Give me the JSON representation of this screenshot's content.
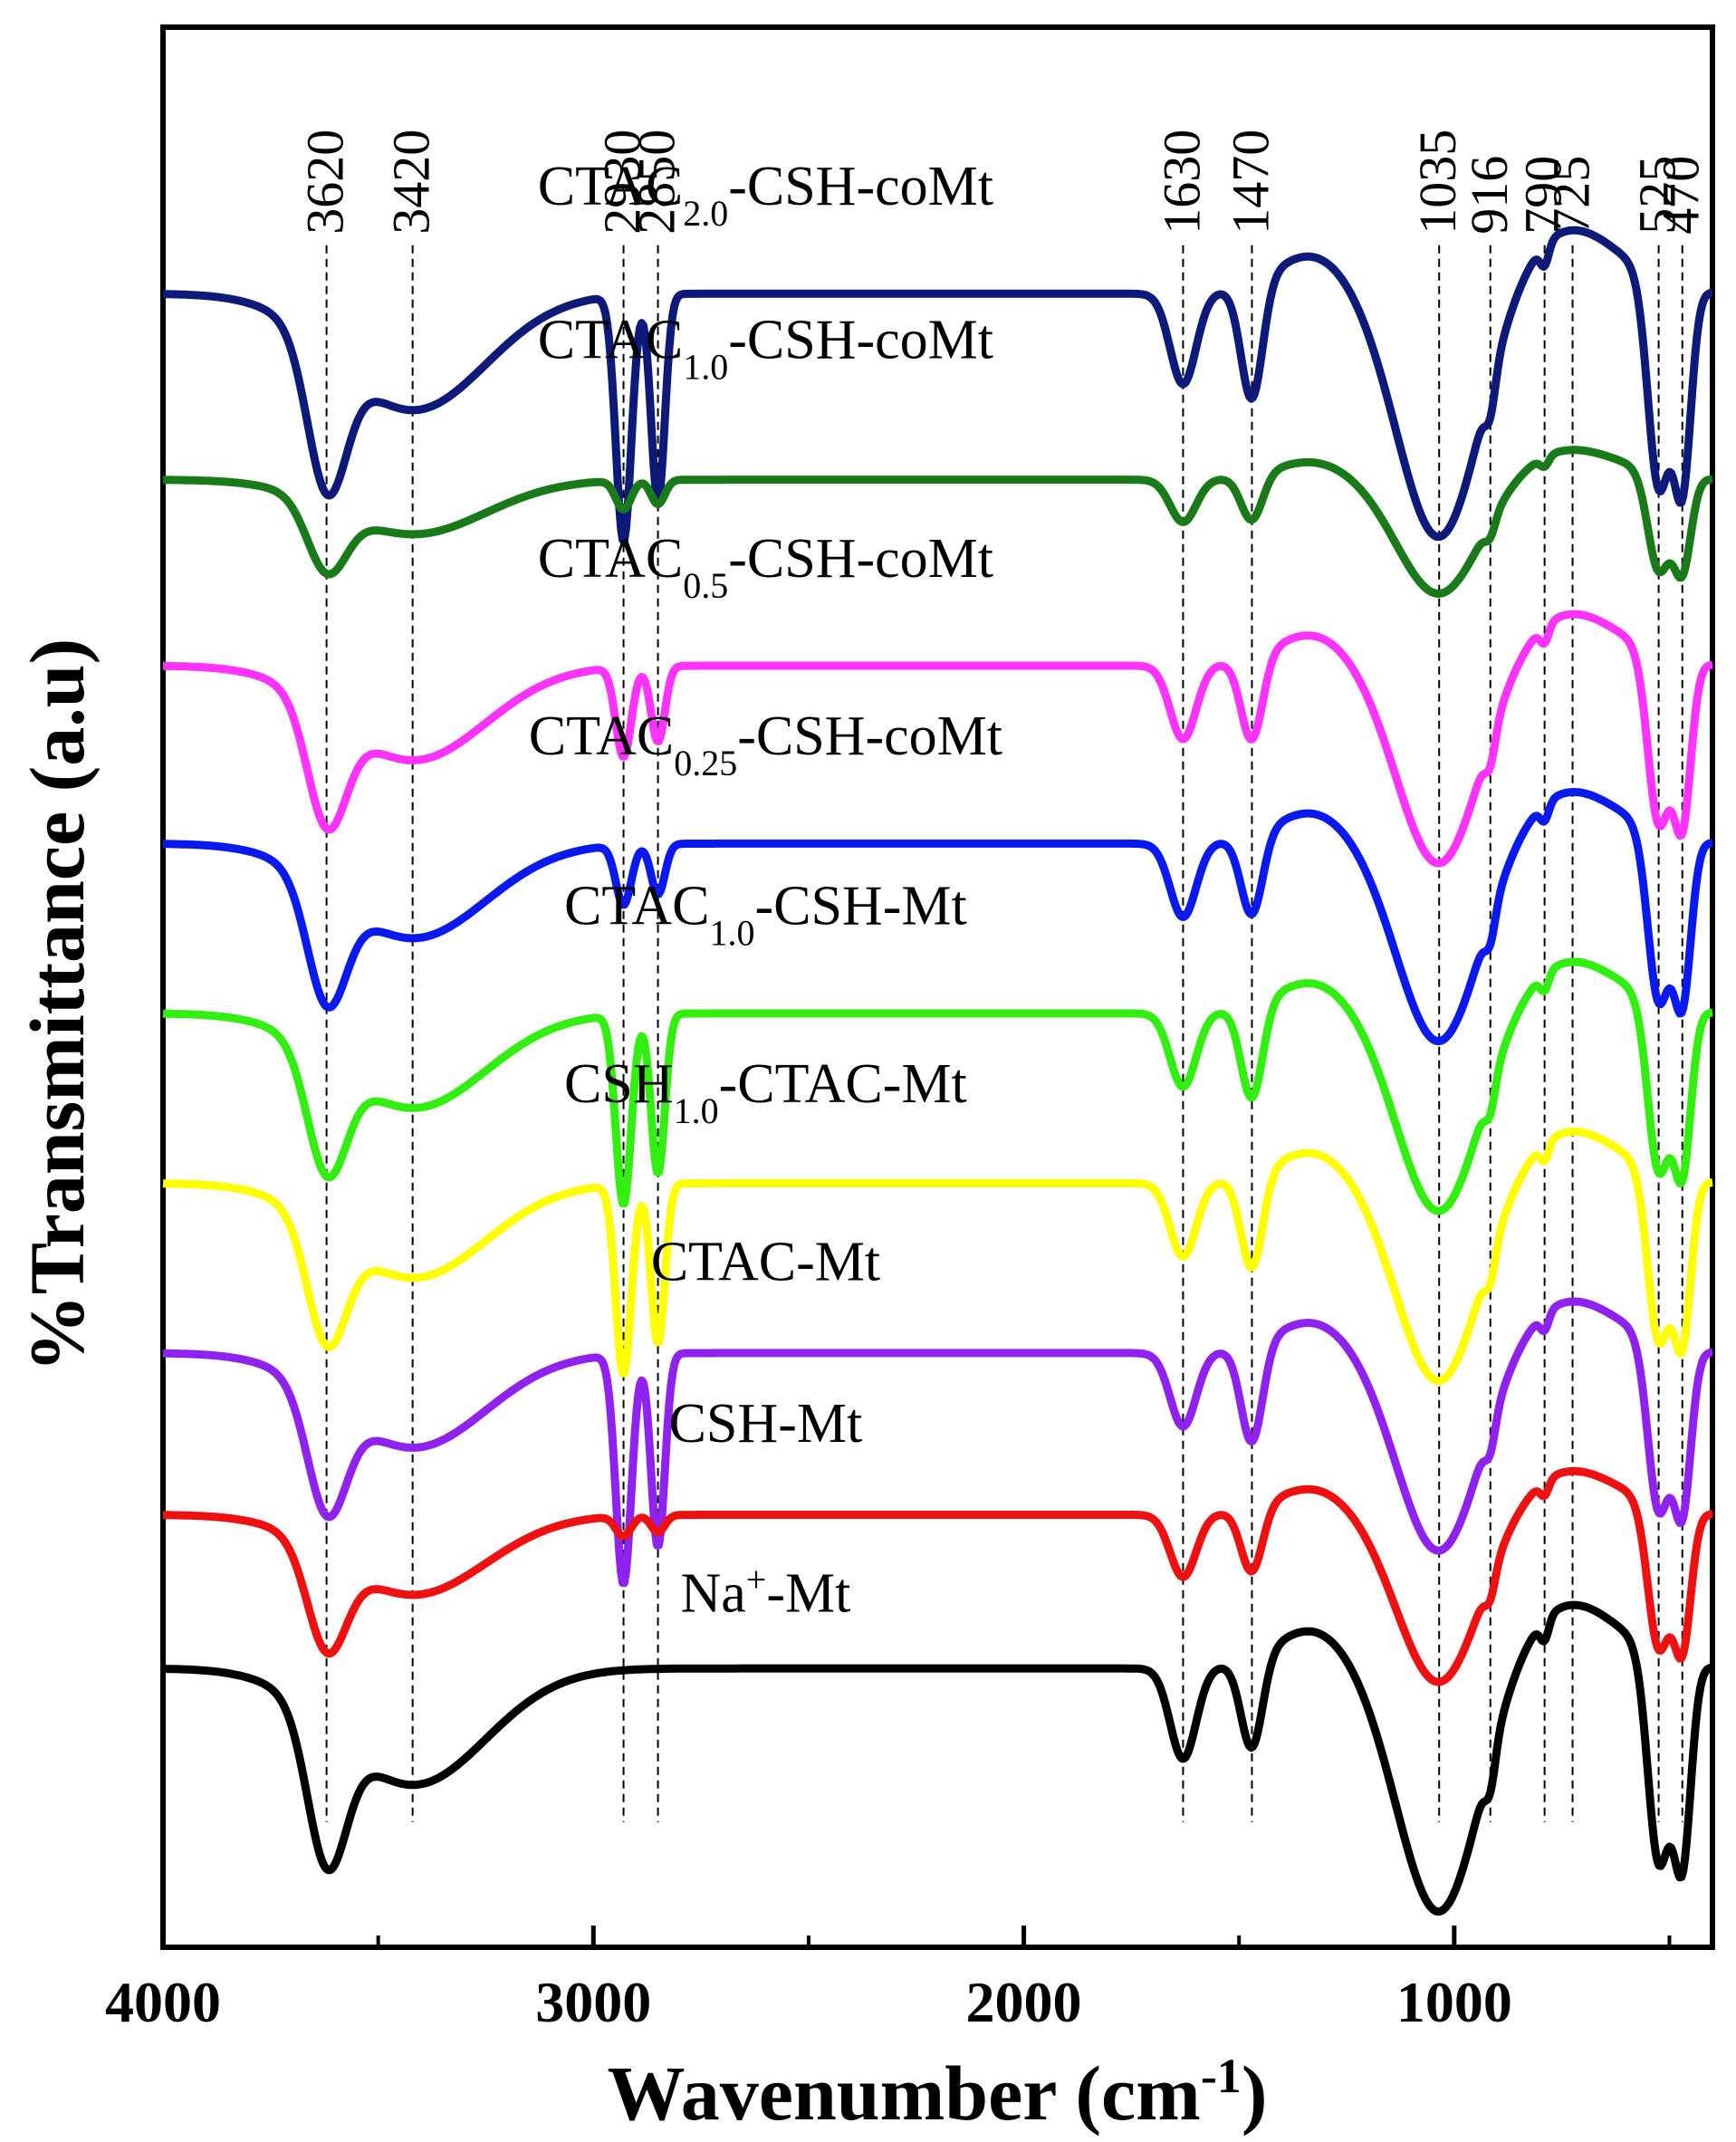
{
  "chart_data": {
    "type": "line",
    "title": "",
    "xlabel": "Wavenumber (cm",
    "xlabel_sup": "-1",
    "xlabel_close": ")",
    "ylabel": "%Transmittance (a.u)",
    "xlim": [
      4000,
      400
    ],
    "x_reversed": true,
    "x_ticks": [
      4000,
      3000,
      2000,
      1000
    ],
    "x_tick_labels": [
      "4000",
      "3000",
      "2000",
      "1000"
    ],
    "y_ticks_shown": false,
    "grid": false,
    "legend": "inline labels above each curve",
    "reference_peaks": [
      {
        "x": 3620,
        "label": "3620"
      },
      {
        "x": 3420,
        "label": "3420"
      },
      {
        "x": 2930,
        "label": "2930"
      },
      {
        "x": 2850,
        "label": "2850"
      },
      {
        "x": 1630,
        "label": "1630"
      },
      {
        "x": 1470,
        "label": "1470"
      },
      {
        "x": 1035,
        "label": "1035"
      },
      {
        "x": 916,
        "label": "916"
      },
      {
        "x": 790,
        "label": "790"
      },
      {
        "x": 725,
        "label": "725"
      },
      {
        "x": 525,
        "label": "525"
      },
      {
        "x": 470,
        "label": "470"
      }
    ],
    "series": [
      {
        "name": "CTAC2.0-CSH-coMt",
        "label": {
          "pre": "CTAC",
          "sub": "2.0",
          "post": "-CSH-coMt"
        },
        "color": "#0d1a7a",
        "baseline": 10.0,
        "scale": 1.6,
        "ch_peaks": 1.0,
        "labelX": 2600,
        "labelOffset": 0.55
      },
      {
        "name": "CTAC1.0-CSH-coMt",
        "label": {
          "pre": "CTAC",
          "sub": "1.0",
          "post": "-CSH-coMt"
        },
        "color": "#1a7a1a",
        "baseline": 8.85,
        "scale": 0.75,
        "ch_peaks": 0.25,
        "labelX": 2600,
        "labelOffset": 0.75
      },
      {
        "name": "CTAC0.5-CSH-coMt",
        "label": {
          "pre": "CTAC",
          "sub": "0.5",
          "post": "-CSH-coMt"
        },
        "color": "#ff33ff",
        "baseline": 7.7,
        "scale": 1.3,
        "ch_peaks": 0.45,
        "labelX": 2600,
        "labelOffset": 0.55
      },
      {
        "name": "CTAC0.25-CSH-coMt",
        "label": {
          "pre": "CTAC",
          "sub": "0.25",
          "post": "-CSH-coMt"
        },
        "color": "#0a1aee",
        "baseline": 6.6,
        "scale": 1.3,
        "ch_peaks": 0.3,
        "labelX": 2600,
        "labelOffset": 0.55
      },
      {
        "name": "CTAC1.0-CSH-Mt",
        "label": {
          "pre": "CTAC",
          "sub": "1.0",
          "post": "-CSH-Mt"
        },
        "color": "#33ee11",
        "baseline": 5.55,
        "scale": 1.3,
        "ch_peaks": 0.95,
        "labelX": 2600,
        "labelOffset": 0.55
      },
      {
        "name": "CSH1.0-CTAC-Mt",
        "label": {
          "pre": "CSH",
          "sub": "1.0",
          "post": "-CTAC-Mt"
        },
        "color": "#ffff00",
        "baseline": 4.5,
        "scale": 1.3,
        "ch_peaks": 0.95,
        "labelX": 2600,
        "labelOffset": 0.5
      },
      {
        "name": "CTAC-Mt",
        "label": {
          "pre": "CTAC-Mt",
          "sub": "",
          "post": ""
        },
        "color": "#8f22ee",
        "baseline": 3.45,
        "scale": 1.3,
        "ch_peaks": 1.15,
        "labelX": 2600,
        "labelOffset": 0.45
      },
      {
        "name": "CSH-Mt",
        "label": {
          "pre": "CSH-Mt",
          "sub": "",
          "post": ""
        },
        "color": "#ee1111",
        "baseline": 2.45,
        "scale": 1.1,
        "ch_peaks": 0.12,
        "labelX": 2600,
        "labelOffset": 0.45
      },
      {
        "name": "Na+-Mt",
        "label": {
          "pre": "Na",
          "sup": "+",
          "post": "-Mt"
        },
        "color": "#000000",
        "baseline": 1.5,
        "scale": 1.6,
        "ch_peaks": 0.0,
        "labelX": 2600,
        "labelOffset": 0.35
      }
    ]
  }
}
